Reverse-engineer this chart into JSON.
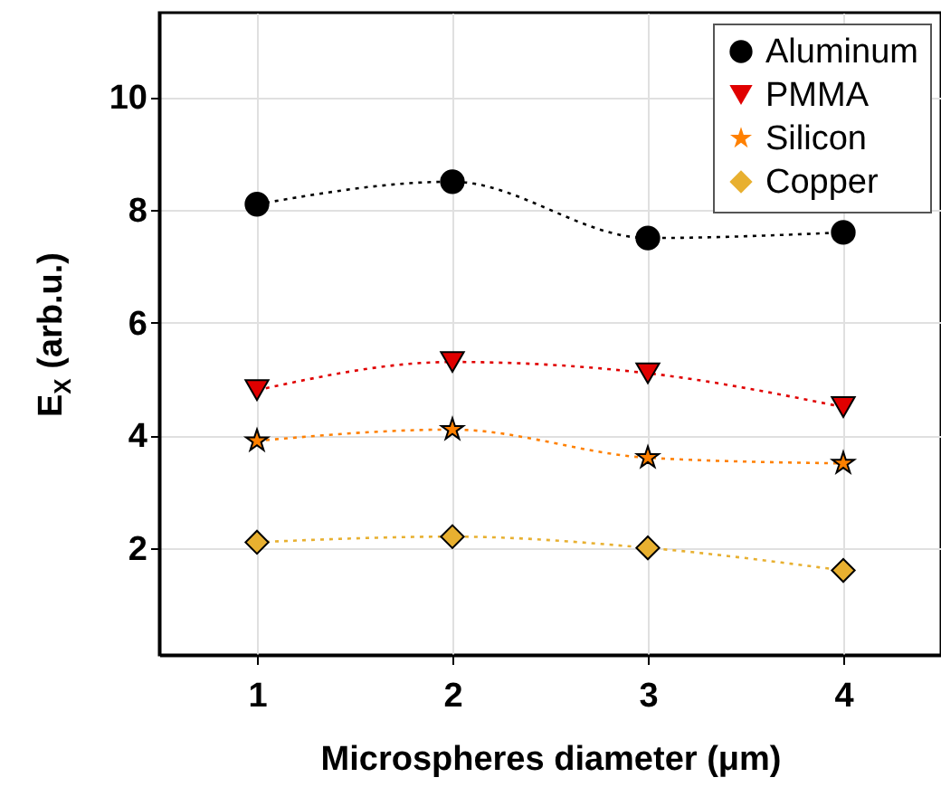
{
  "chart_data": {
    "type": "line",
    "xlabel": "Microspheres diameter (μm)",
    "ylabel": "E$_{X}$  (arb.u.)",
    "x": [
      1,
      2,
      3,
      4
    ],
    "series": [
      {
        "name": "Aluminum",
        "color": "#000000",
        "marker": "circle",
        "values": [
          8.1,
          8.5,
          7.5,
          7.6
        ]
      },
      {
        "name": "PMMA",
        "color": "#e00000",
        "marker": "triangle",
        "values": [
          4.8,
          5.3,
          5.1,
          4.5
        ]
      },
      {
        "name": "Silicon",
        "color": "#ff8000",
        "marker": "star",
        "values": [
          3.9,
          4.1,
          3.6,
          3.5
        ]
      },
      {
        "name": "Copper",
        "color": "#e8b030",
        "marker": "diamond",
        "values": [
          2.1,
          2.2,
          2.0,
          1.6
        ]
      }
    ],
    "xlim": [
      0.5,
      4.5
    ],
    "xticks": [
      1,
      2,
      3,
      4
    ],
    "ylim": [
      0.1,
      11.5
    ],
    "yticks": [
      2,
      4,
      6,
      8,
      10
    ],
    "grid": true,
    "legend": "top right",
    "line_style": "dotted"
  }
}
